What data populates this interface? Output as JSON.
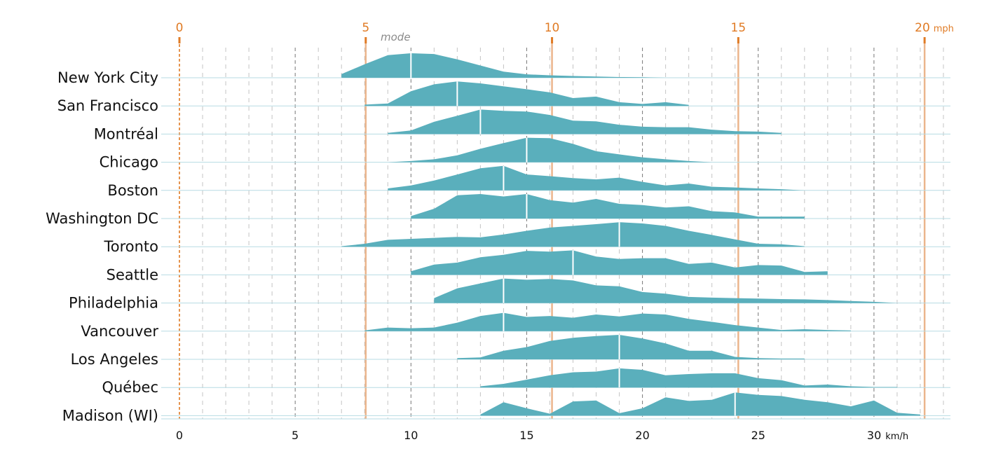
{
  "chart_data": {
    "type": "area",
    "variant": "ridgeline",
    "xlabel": "km/h",
    "secondary_axis_label": "mph",
    "mode_annotation": "mode",
    "xlim": [
      0,
      33
    ],
    "x_ticks": [
      0,
      5,
      10,
      15,
      20,
      25,
      30
    ],
    "x_tick_labels": [
      "0",
      "5",
      "10",
      "15",
      "20",
      "25",
      "30"
    ],
    "secondary_ticks_mph": [
      0,
      5,
      10,
      15,
      20
    ],
    "secondary_tick_labels": [
      "0",
      "5",
      "10",
      "15",
      "20"
    ],
    "grid": true,
    "colors": {
      "fill": "#5aafbc",
      "baseline": "#b7dbe3",
      "mph_line": "#e8a978",
      "mph_text": "#e07b25",
      "mode_line": "#ffffff",
      "grid_major": "#777777",
      "grid_minor": "#c4c4c4"
    },
    "series": [
      {
        "name": "New York City",
        "mode": 10,
        "x": [
          7,
          8,
          9,
          10,
          11,
          12,
          13,
          14,
          15,
          16,
          17,
          18,
          19,
          20,
          21
        ],
        "y": [
          0.15,
          0.55,
          0.92,
          1.0,
          0.97,
          0.75,
          0.5,
          0.25,
          0.14,
          0.1,
          0.07,
          0.05,
          0.03,
          0.02,
          0.0
        ]
      },
      {
        "name": "San Francisco",
        "mode": 12,
        "x": [
          8,
          9,
          10,
          11,
          12,
          13,
          14,
          15,
          16,
          17,
          18,
          19,
          20,
          21,
          22
        ],
        "y": [
          0.05,
          0.1,
          0.6,
          0.88,
          1.0,
          0.92,
          0.8,
          0.68,
          0.55,
          0.32,
          0.38,
          0.15,
          0.08,
          0.15,
          0.04
        ]
      },
      {
        "name": "Montréal",
        "mode": 13,
        "x": [
          9,
          10,
          11,
          12,
          13,
          14,
          15,
          16,
          17,
          18,
          19,
          20,
          21,
          22,
          23,
          24,
          25,
          26
        ],
        "y": [
          0.05,
          0.15,
          0.5,
          0.75,
          1.0,
          0.95,
          0.92,
          0.78,
          0.55,
          0.52,
          0.38,
          0.3,
          0.28,
          0.28,
          0.18,
          0.12,
          0.1,
          0.05
        ]
      },
      {
        "name": "Chicago",
        "mode": 15,
        "x": [
          9,
          10,
          11,
          12,
          13,
          14,
          15,
          16,
          17,
          18,
          19,
          20,
          21,
          22,
          23
        ],
        "y": [
          0.0,
          0.05,
          0.12,
          0.28,
          0.55,
          0.78,
          1.0,
          0.98,
          0.75,
          0.45,
          0.32,
          0.2,
          0.12,
          0.05,
          0.0
        ]
      },
      {
        "name": "Boston",
        "mode": 14,
        "x": [
          9,
          10,
          11,
          12,
          13,
          14,
          15,
          16,
          17,
          18,
          19,
          20,
          21,
          22,
          23,
          24,
          25,
          26,
          27
        ],
        "y": [
          0.08,
          0.2,
          0.4,
          0.65,
          0.9,
          1.0,
          0.65,
          0.58,
          0.5,
          0.45,
          0.52,
          0.35,
          0.2,
          0.28,
          0.15,
          0.12,
          0.08,
          0.05,
          0.0
        ]
      },
      {
        "name": "Washington DC",
        "mode": 15,
        "x": [
          10,
          11,
          12,
          13,
          14,
          15,
          16,
          17,
          18,
          19,
          20,
          21,
          22,
          23,
          24,
          25,
          26,
          27
        ],
        "y": [
          0.1,
          0.4,
          0.95,
          1.0,
          0.9,
          1.0,
          0.75,
          0.65,
          0.8,
          0.6,
          0.55,
          0.45,
          0.5,
          0.3,
          0.25,
          0.08,
          0.08,
          0.08
        ]
      },
      {
        "name": "Toronto",
        "mode": 19,
        "x": [
          7,
          8,
          9,
          10,
          11,
          12,
          13,
          14,
          15,
          16,
          17,
          18,
          19,
          20,
          21,
          22,
          23,
          24,
          25,
          26,
          27
        ],
        "y": [
          0.02,
          0.12,
          0.28,
          0.32,
          0.36,
          0.4,
          0.38,
          0.5,
          0.65,
          0.78,
          0.85,
          0.92,
          1.0,
          0.95,
          0.85,
          0.65,
          0.48,
          0.3,
          0.12,
          0.1,
          0.02
        ]
      },
      {
        "name": "Seattle",
        "mode": 17,
        "x": [
          10,
          11,
          12,
          13,
          14,
          15,
          16,
          17,
          18,
          19,
          20,
          21,
          22,
          23,
          24,
          25,
          26,
          27,
          28
        ],
        "y": [
          0.15,
          0.42,
          0.5,
          0.72,
          0.82,
          0.98,
          0.95,
          1.0,
          0.75,
          0.65,
          0.68,
          0.68,
          0.45,
          0.5,
          0.3,
          0.4,
          0.38,
          0.12,
          0.15
        ]
      },
      {
        "name": "Philadelphia",
        "mode": 14,
        "x": [
          11,
          12,
          13,
          14,
          15,
          16,
          17,
          18,
          19,
          20,
          21,
          22,
          23,
          24,
          25,
          26,
          27,
          28,
          29,
          30,
          31
        ],
        "y": [
          0.2,
          0.6,
          0.8,
          1.0,
          0.95,
          0.98,
          0.92,
          0.72,
          0.68,
          0.45,
          0.38,
          0.25,
          0.22,
          0.2,
          0.18,
          0.16,
          0.15,
          0.12,
          0.08,
          0.05,
          0.0
        ]
      },
      {
        "name": "Vancouver",
        "mode": 14,
        "x": [
          8,
          9,
          10,
          11,
          12,
          13,
          14,
          15,
          16,
          17,
          18,
          19,
          20,
          21,
          22,
          23,
          24,
          25,
          26,
          27,
          28,
          29
        ],
        "y": [
          0.03,
          0.15,
          0.12,
          0.15,
          0.35,
          0.62,
          0.75,
          0.58,
          0.62,
          0.55,
          0.68,
          0.6,
          0.72,
          0.68,
          0.5,
          0.38,
          0.25,
          0.15,
          0.05,
          0.08,
          0.05,
          0.03
        ]
      },
      {
        "name": "Los Angeles",
        "mode": 19,
        "x": [
          12,
          13,
          14,
          15,
          16,
          17,
          18,
          19,
          20,
          21,
          22,
          23,
          24,
          25,
          26,
          27
        ],
        "y": [
          0.05,
          0.08,
          0.35,
          0.5,
          0.75,
          0.88,
          0.95,
          1.0,
          0.85,
          0.65,
          0.35,
          0.35,
          0.1,
          0.05,
          0.03,
          0.03
        ]
      },
      {
        "name": "Québec",
        "mode": 19,
        "x": [
          13,
          14,
          15,
          16,
          17,
          18,
          19,
          20,
          21,
          22,
          23,
          24,
          25,
          26,
          27,
          28,
          29,
          30,
          31
        ],
        "y": [
          0.05,
          0.15,
          0.32,
          0.5,
          0.62,
          0.65,
          0.78,
          0.72,
          0.5,
          0.55,
          0.58,
          0.58,
          0.38,
          0.3,
          0.08,
          0.12,
          0.05,
          0.02,
          0.02
        ]
      },
      {
        "name": "Madison (WI)",
        "mode": 24,
        "x": [
          13,
          14,
          15,
          16,
          17,
          18,
          19,
          20,
          21,
          22,
          23,
          24,
          25,
          26,
          27,
          28,
          29,
          30,
          31,
          32
        ],
        "y": [
          0.05,
          0.55,
          0.3,
          0.08,
          0.58,
          0.62,
          0.1,
          0.3,
          0.75,
          0.6,
          0.65,
          0.95,
          0.85,
          0.8,
          0.65,
          0.55,
          0.38,
          0.62,
          0.12,
          0.05
        ]
      }
    ]
  }
}
